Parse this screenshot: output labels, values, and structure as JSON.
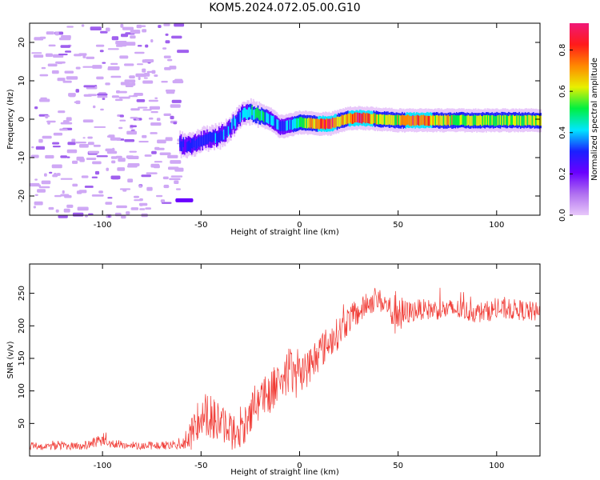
{
  "title": "KOM5.2024.072.05.00.G10",
  "colors": {
    "snr_line": "#f03a34",
    "faint_purple": "#cfa8f5",
    "medium_purple": "#a060ee",
    "colormap": [
      "#e8c8fa",
      "#b070f0",
      "#6a00ff",
      "#1a20ff",
      "#00e6ff",
      "#00f040",
      "#e8f000",
      "#ff8800",
      "#ff1a1a",
      "#f01878"
    ]
  },
  "chart_data": [
    {
      "type": "heatmap",
      "xlabel": "Height of straight line (km)",
      "ylabel": "Frequency (Hz)",
      "xlim": [
        -137,
        122
      ],
      "ylim": [
        -25,
        25
      ],
      "x_ticks": [
        -100,
        -50,
        0,
        50,
        100
      ],
      "y_ticks": [
        -20,
        -10,
        0,
        10,
        20
      ],
      "colorbar": {
        "label": "Normalized spectral amplitude",
        "range": [
          0.0,
          0.93
        ],
        "ticks": [
          "0.0",
          "0.2",
          "0.4",
          "0.6",
          "0.8"
        ],
        "tick_values": [
          0.0,
          0.2,
          0.4,
          0.6,
          0.8
        ]
      },
      "ridge": [
        {
          "x": -60,
          "y": -6.5,
          "a": 0.28
        },
        {
          "x": -55,
          "y": -6.8,
          "a": 0.3
        },
        {
          "x": -50,
          "y": -5.5,
          "a": 0.3
        },
        {
          "x": -45,
          "y": -5.0,
          "a": 0.32
        },
        {
          "x": -40,
          "y": -4.2,
          "a": 0.33
        },
        {
          "x": -35,
          "y": -2.0,
          "a": 0.34
        },
        {
          "x": -30,
          "y": 1.0,
          "a": 0.35
        },
        {
          "x": -25,
          "y": 2.0,
          "a": 0.42
        },
        {
          "x": -20,
          "y": 1.0,
          "a": 0.48
        },
        {
          "x": -15,
          "y": 0.0,
          "a": 0.35
        },
        {
          "x": -10,
          "y": -2.0,
          "a": 0.35
        },
        {
          "x": -5,
          "y": -1.5,
          "a": 0.35
        },
        {
          "x": 0,
          "y": -0.8,
          "a": 0.55
        },
        {
          "x": 5,
          "y": -1.0,
          "a": 0.65
        },
        {
          "x": 10,
          "y": -1.2,
          "a": 0.7
        },
        {
          "x": 15,
          "y": -1.2,
          "a": 0.9
        },
        {
          "x": 20,
          "y": -0.5,
          "a": 0.6
        },
        {
          "x": 25,
          "y": 0.2,
          "a": 0.7
        },
        {
          "x": 30,
          "y": 0.3,
          "a": 0.85
        },
        {
          "x": 35,
          "y": 0.2,
          "a": 0.75
        },
        {
          "x": 40,
          "y": 0.0,
          "a": 0.6
        },
        {
          "x": 50,
          "y": -0.3,
          "a": 0.62
        },
        {
          "x": 60,
          "y": -0.3,
          "a": 0.85
        },
        {
          "x": 70,
          "y": -0.3,
          "a": 0.62
        },
        {
          "x": 80,
          "y": -0.3,
          "a": 0.6
        },
        {
          "x": 90,
          "y": -0.3,
          "a": 0.58
        },
        {
          "x": 100,
          "y": -0.3,
          "a": 0.55
        },
        {
          "x": 110,
          "y": -0.3,
          "a": 0.55
        },
        {
          "x": 122,
          "y": -0.3,
          "a": 0.6
        }
      ]
    },
    {
      "type": "line",
      "xlabel": "Height of straight line (km)",
      "ylabel": "SNR (v/v)",
      "xlim": [
        -137,
        122
      ],
      "ylim": [
        0,
        295
      ],
      "x_ticks": [
        -100,
        -50,
        0,
        50,
        100
      ],
      "y_ticks": [
        50,
        100,
        150,
        200,
        250
      ],
      "series": [
        {
          "x": [
            -137,
            -130,
            -120,
            -110,
            -105,
            -100,
            -90,
            -80,
            -70,
            -60,
            -55,
            -50,
            -45,
            -40,
            -35,
            -30,
            -25,
            -20,
            -15,
            -10,
            -5,
            0,
            5,
            10,
            15,
            20,
            25,
            30,
            35,
            40,
            45,
            48,
            50,
            52,
            55,
            60,
            70,
            80,
            90,
            100,
            110,
            122
          ],
          "y": [
            15,
            15,
            15,
            15,
            20,
            22,
            17,
            16,
            16,
            18,
            30,
            70,
            60,
            50,
            40,
            30,
            70,
            90,
            100,
            120,
            130,
            120,
            140,
            160,
            175,
            190,
            210,
            220,
            235,
            240,
            230,
            215,
            230,
            215,
            220,
            225,
            225,
            225,
            220,
            225,
            225,
            220
          ],
          "noise": [
            6,
            6,
            6,
            6,
            8,
            8,
            6,
            6,
            6,
            8,
            25,
            35,
            35,
            30,
            30,
            25,
            35,
            35,
            35,
            35,
            35,
            35,
            30,
            30,
            25,
            25,
            22,
            20,
            18,
            18,
            18,
            30,
            45,
            30,
            18,
            16,
            16,
            16,
            16,
            16,
            16,
            16
          ]
        }
      ]
    }
  ]
}
